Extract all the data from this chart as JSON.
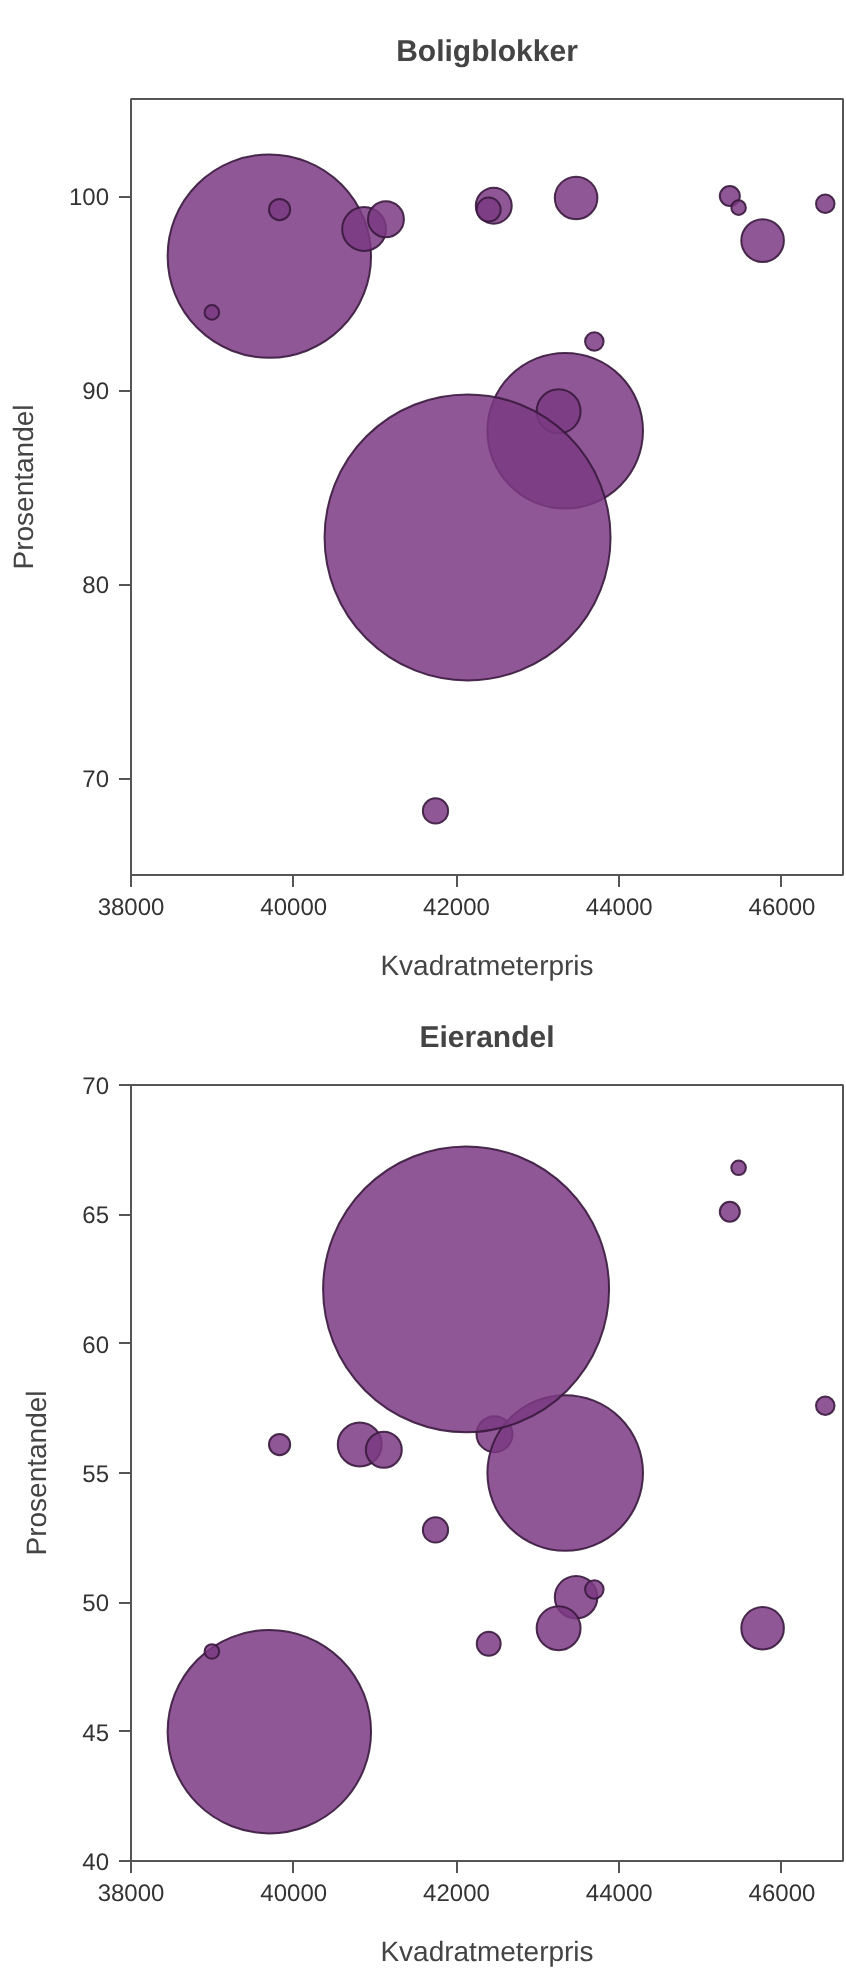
{
  "chart_data": [
    {
      "type": "bubble",
      "title": "Boligblokker",
      "xlabel": "Kvadratmeterpris",
      "ylabel": "Prosentandel",
      "xlim": [
        38000,
        46750
      ],
      "xticks": [
        38000,
        40000,
        42000,
        44000,
        46000
      ],
      "ylim": [
        65,
        105
      ],
      "yticks": [
        70,
        80,
        90,
        100
      ],
      "grid": false,
      "series": [
        {
          "color": "#7b3a82",
          "x": [
            39700,
            39826,
            38994,
            40865,
            41133,
            42458,
            42396,
            43470,
            43694,
            43336,
            43255,
            42136,
            41742,
            45359,
            45467,
            45762,
            46532
          ],
          "values": [
            96.9,
            99.3,
            94.0,
            98.3,
            98.8,
            99.5,
            99.3,
            99.9,
            92.5,
            87.9,
            88.9,
            82.4,
            68.3,
            100.0,
            99.4,
            97.7,
            99.6
          ],
          "sizes": [
            0.506,
            0.0055,
            0.0026,
            0.0236,
            0.0158,
            0.0158,
            0.007,
            0.0222,
            0.0042,
            0.296,
            0.0236,
            1,
            0.0078,
            0.0049,
            0.0026,
            0.0222,
            0.0042
          ]
        }
      ]
    },
    {
      "type": "bubble",
      "title": "Eierandel",
      "xlabel": "Kvadratmeterpris",
      "ylabel": "Prosentandel",
      "xlim": [
        38000,
        46750
      ],
      "xticks": [
        38000,
        40000,
        42000,
        44000,
        46000
      ],
      "ylim": [
        40,
        70
      ],
      "yticks": [
        40,
        45,
        50,
        55,
        60,
        65,
        70
      ],
      "grid": false,
      "series": [
        {
          "color": "#7b3a82",
          "x": [
            39700,
            39826,
            38994,
            40811,
            41107,
            42467,
            42396,
            43470,
            43694,
            43336,
            43255,
            42118,
            41742,
            45359,
            45467,
            45762,
            46532
          ],
          "values": [
            45.0,
            56.1,
            48.1,
            56.1,
            55.9,
            56.5,
            48.4,
            50.2,
            50.5,
            55.0,
            49.0,
            62.1,
            52.8,
            65.1,
            66.8,
            49.0,
            57.6
          ],
          "sizes": [
            0.506,
            0.0055,
            0.0026,
            0.0236,
            0.0158,
            0.0158,
            0.007,
            0.0222,
            0.0042,
            0.296,
            0.0236,
            1,
            0.0078,
            0.0049,
            0.0026,
            0.0222,
            0.0042
          ]
        }
      ]
    }
  ]
}
